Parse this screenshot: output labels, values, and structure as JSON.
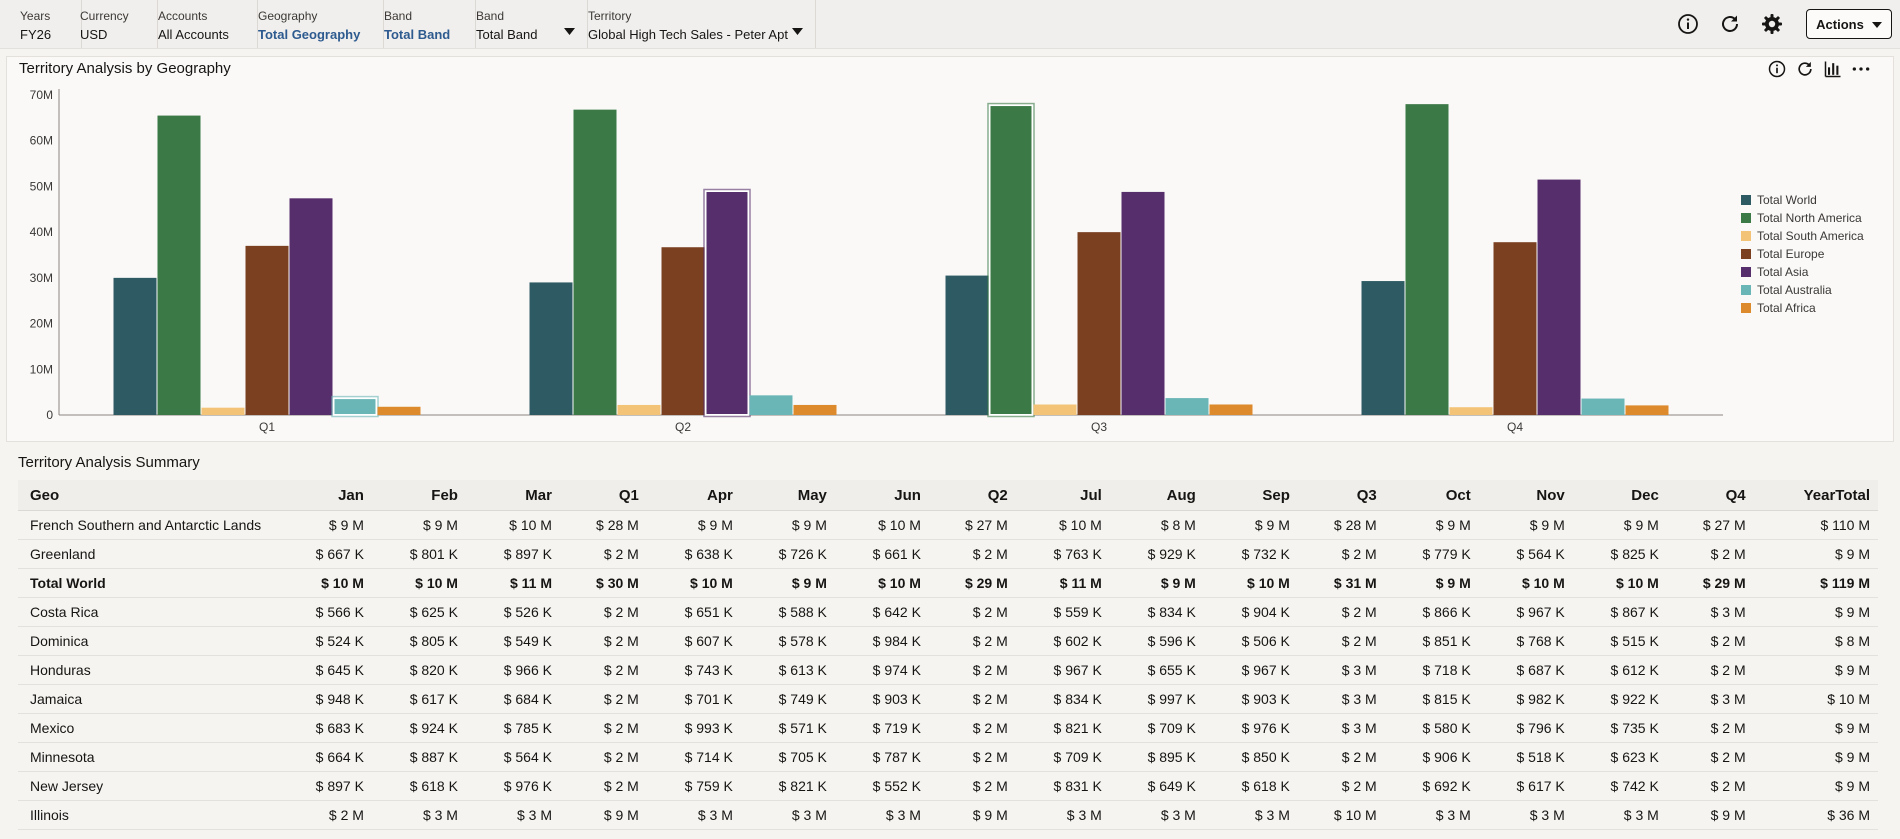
{
  "pov": [
    {
      "label": "Years",
      "value": "FY26",
      "link": false,
      "dropdown": false
    },
    {
      "label": "Currency",
      "value": "USD",
      "link": false,
      "dropdown": false
    },
    {
      "label": "Accounts",
      "value": "All Accounts",
      "link": false,
      "dropdown": false
    },
    {
      "label": "Geography",
      "value": "Total Geography",
      "link": true,
      "dropdown": false
    },
    {
      "label": "Band",
      "value": "Total Band",
      "link": true,
      "dropdown": false
    },
    {
      "label": "Band",
      "value": "Total Band",
      "link": false,
      "dropdown": true
    },
    {
      "label": "Territory",
      "value": "Global High Tech Sales - Peter Apt",
      "link": false,
      "dropdown": true
    }
  ],
  "header": {
    "actions_label": "Actions",
    "icons": [
      "info-icon",
      "refresh-icon",
      "settings-icon"
    ]
  },
  "chart_panel": {
    "title": "Territory Analysis by Geography",
    "tool_icons": [
      "info-icon",
      "refresh-icon",
      "chart-type-icon",
      "more-icon"
    ]
  },
  "chart_data": {
    "type": "bar",
    "categories": [
      "Q1",
      "Q2",
      "Q3",
      "Q4"
    ],
    "ylim": [
      0,
      70000000
    ],
    "yticks": [
      "0",
      "10M",
      "20M",
      "30M",
      "40M",
      "50M",
      "60M",
      "70M"
    ],
    "grid": false,
    "legend_position": "right",
    "series": [
      {
        "name": "Total World",
        "color": "#2e5b63",
        "values": [
          30000000,
          29000000,
          30500000,
          29300000
        ]
      },
      {
        "name": "Total North America",
        "color": "#3b7a46",
        "values": [
          65500000,
          66800000,
          67800000,
          68000000
        ]
      },
      {
        "name": "Total South America",
        "color": "#f3c377",
        "values": [
          1600000,
          2200000,
          2300000,
          1700000
        ]
      },
      {
        "name": "Total Europe",
        "color": "#7a4020",
        "values": [
          37000000,
          36700000,
          40000000,
          37800000
        ]
      },
      {
        "name": "Total Asia",
        "color": "#562e6b",
        "values": [
          47400000,
          49000000,
          48800000,
          51500000
        ]
      },
      {
        "name": "Total Australia",
        "color": "#6ab6b6",
        "values": [
          3700000,
          4300000,
          3700000,
          3600000
        ]
      },
      {
        "name": "Total Africa",
        "color": "#dd8a2c",
        "values": [
          1800000,
          2200000,
          2300000,
          2100000
        ]
      }
    ]
  },
  "summary": {
    "title": "Territory Analysis Summary",
    "columns": [
      "Geo",
      "Jan",
      "Feb",
      "Mar",
      "Q1",
      "Apr",
      "May",
      "Jun",
      "Q2",
      "Jul",
      "Aug",
      "Sep",
      "Q3",
      "Oct",
      "Nov",
      "Dec",
      "Q4",
      "YearTotal"
    ],
    "rows": [
      {
        "bold": false,
        "cells": [
          "French Southern and Antarctic Lands",
          "$ 9 M",
          "$ 9 M",
          "$ 10 M",
          "$ 28 M",
          "$ 9 M",
          "$ 9 M",
          "$ 10 M",
          "$ 27 M",
          "$ 10 M",
          "$ 8 M",
          "$ 9 M",
          "$ 28 M",
          "$ 9 M",
          "$ 9 M",
          "$ 9 M",
          "$ 27 M",
          "$ 110 M"
        ]
      },
      {
        "bold": false,
        "cells": [
          "Greenland",
          "$ 667 K",
          "$ 801 K",
          "$ 897 K",
          "$ 2 M",
          "$ 638 K",
          "$ 726 K",
          "$ 661 K",
          "$ 2 M",
          "$ 763 K",
          "$ 929 K",
          "$ 732 K",
          "$ 2 M",
          "$ 779 K",
          "$ 564 K",
          "$ 825 K",
          "$ 2 M",
          "$ 9 M"
        ]
      },
      {
        "bold": true,
        "cells": [
          "Total World",
          "$ 10 M",
          "$ 10 M",
          "$ 11 M",
          "$ 30 M",
          "$ 10 M",
          "$ 9 M",
          "$ 10 M",
          "$ 29 M",
          "$ 11 M",
          "$ 9 M",
          "$ 10 M",
          "$ 31 M",
          "$ 9 M",
          "$ 10 M",
          "$ 10 M",
          "$ 29 M",
          "$ 119 M"
        ]
      },
      {
        "bold": false,
        "cells": [
          "Costa Rica",
          "$ 566 K",
          "$ 625 K",
          "$ 526 K",
          "$ 2 M",
          "$ 651 K",
          "$ 588 K",
          "$ 642 K",
          "$ 2 M",
          "$ 559 K",
          "$ 834 K",
          "$ 904 K",
          "$ 2 M",
          "$ 866 K",
          "$ 967 K",
          "$ 867 K",
          "$ 3 M",
          "$ 9 M"
        ]
      },
      {
        "bold": false,
        "cells": [
          "Dominica",
          "$ 524 K",
          "$ 805 K",
          "$ 549 K",
          "$ 2 M",
          "$ 607 K",
          "$ 578 K",
          "$ 984 K",
          "$ 2 M",
          "$ 602 K",
          "$ 596 K",
          "$ 506 K",
          "$ 2 M",
          "$ 851 K",
          "$ 768 K",
          "$ 515 K",
          "$ 2 M",
          "$ 8 M"
        ]
      },
      {
        "bold": false,
        "cells": [
          "Honduras",
          "$ 645 K",
          "$ 820 K",
          "$ 966 K",
          "$ 2 M",
          "$ 743 K",
          "$ 613 K",
          "$ 974 K",
          "$ 2 M",
          "$ 967 K",
          "$ 655 K",
          "$ 967 K",
          "$ 3 M",
          "$ 718 K",
          "$ 687 K",
          "$ 612 K",
          "$ 2 M",
          "$ 9 M"
        ]
      },
      {
        "bold": false,
        "cells": [
          "Jamaica",
          "$ 948 K",
          "$ 617 K",
          "$ 684 K",
          "$ 2 M",
          "$ 701 K",
          "$ 749 K",
          "$ 903 K",
          "$ 2 M",
          "$ 834 K",
          "$ 997 K",
          "$ 903 K",
          "$ 3 M",
          "$ 815 K",
          "$ 982 K",
          "$ 922 K",
          "$ 3 M",
          "$ 10 M"
        ]
      },
      {
        "bold": false,
        "cells": [
          "Mexico",
          "$ 683 K",
          "$ 924 K",
          "$ 785 K",
          "$ 2 M",
          "$ 993 K",
          "$ 571 K",
          "$ 719 K",
          "$ 2 M",
          "$ 821 K",
          "$ 709 K",
          "$ 976 K",
          "$ 3 M",
          "$ 580 K",
          "$ 796 K",
          "$ 735 K",
          "$ 2 M",
          "$ 9 M"
        ]
      },
      {
        "bold": false,
        "cells": [
          "Minnesota",
          "$ 664 K",
          "$ 887 K",
          "$ 564 K",
          "$ 2 M",
          "$ 714 K",
          "$ 705 K",
          "$ 787 K",
          "$ 2 M",
          "$ 709 K",
          "$ 895 K",
          "$ 850 K",
          "$ 2 M",
          "$ 906 K",
          "$ 518 K",
          "$ 623 K",
          "$ 2 M",
          "$ 9 M"
        ]
      },
      {
        "bold": false,
        "cells": [
          "New Jersey",
          "$ 897 K",
          "$ 618 K",
          "$ 976 K",
          "$ 2 M",
          "$ 759 K",
          "$ 821 K",
          "$ 552 K",
          "$ 2 M",
          "$ 831 K",
          "$ 649 K",
          "$ 618 K",
          "$ 2 M",
          "$ 692 K",
          "$ 617 K",
          "$ 742 K",
          "$ 2 M",
          "$ 9 M"
        ]
      },
      {
        "bold": false,
        "cells": [
          "Illinois",
          "$ 2 M",
          "$ 3 M",
          "$ 3 M",
          "$ 9 M",
          "$ 3 M",
          "$ 3 M",
          "$ 3 M",
          "$ 9 M",
          "$ 3 M",
          "$ 3 M",
          "$ 3 M",
          "$ 10 M",
          "$ 3 M",
          "$ 3 M",
          "$ 3 M",
          "$ 9 M",
          "$ 36 M"
        ]
      }
    ]
  }
}
